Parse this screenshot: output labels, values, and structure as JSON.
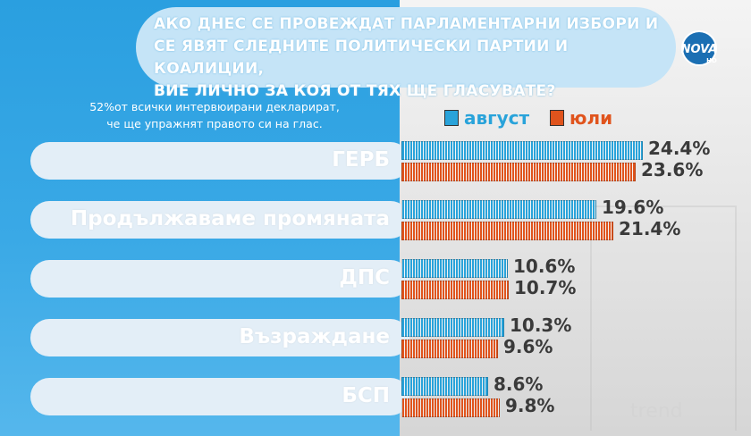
{
  "question": {
    "line1": "АКО ДНЕС СЕ ПРОВЕЖДАТ ПАРЛАМЕНТАРНИ ИЗБОРИ И",
    "line2": "СЕ ЯВЯТ СЛЕДНИТЕ ПОЛИТИЧЕСКИ ПАРТИИ И КОАЛИЦИИ,",
    "line3": "ВИЕ ЛИЧНО ЗА КОЯ ОТ ТЯХ ЩЕ ГЛАСУВАТЕ?"
  },
  "logo": {
    "text": "NOVA",
    "sub": "HD"
  },
  "footnote": {
    "line1": "52%от всички интервюирани декларират,",
    "line2": "че ще упражнят правото си на глас."
  },
  "watermark": "trend",
  "colors": {
    "august": "#29a3da",
    "july": "#e0541d",
    "left_panel": "#2a9fe0"
  },
  "chart_data": {
    "type": "bar",
    "orientation": "horizontal",
    "categories": [
      "ГЕРБ",
      "Продължаваме промяната",
      "ДПС",
      "Възраждане",
      "БСП"
    ],
    "series": [
      {
        "name": "август",
        "values": [
          24.4,
          19.6,
          10.6,
          10.3,
          8.6
        ]
      },
      {
        "name": "юли",
        "values": [
          23.6,
          21.4,
          10.7,
          9.6,
          9.8
        ]
      }
    ],
    "data_labels": {
      "август": [
        "24.4%",
        "19.6%",
        "10.6%",
        "10.3%",
        "8.6%"
      ],
      "юли": [
        "23.6%",
        "21.4%",
        "10.7%",
        "9.6%",
        "9.8%"
      ]
    },
    "legend_position": "top-right",
    "grid": false
  }
}
